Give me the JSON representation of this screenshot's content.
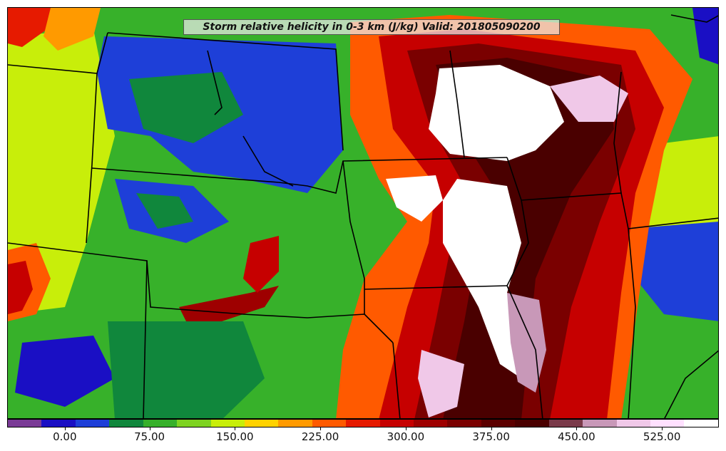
{
  "title": "Storm relative helicity in 0-3 km (J/kg) Valid: 201805090200",
  "colorbar": {
    "colors": [
      "#7a3b96",
      "#1a0fc4",
      "#1e3fd8",
      "#10873c",
      "#36b02a",
      "#7ed321",
      "#c8ee0a",
      "#ffd200",
      "#ff9a00",
      "#ff5a00",
      "#e61a00",
      "#c60000",
      "#9e0000",
      "#7a0000",
      "#5c0000",
      "#4a0000",
      "#7a3a4a",
      "#c898b8",
      "#f0c8e8",
      "#ffe0ff",
      "#ffffff"
    ],
    "labels": [
      "0.00",
      "75.00",
      "150.00",
      "225.00",
      "300.00",
      "375.00",
      "450.00",
      "525.00"
    ],
    "label_fractions": [
      0.081,
      0.2,
      0.32,
      0.44,
      0.56,
      0.68,
      0.8,
      0.92
    ]
  },
  "legend_values": {
    "min_level": "-50",
    "max_level": "575",
    "interval": "25"
  }
}
